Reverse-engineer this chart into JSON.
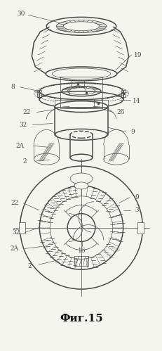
{
  "title": "Фиг.15",
  "title_fontsize": 11,
  "title_fontweight": "bold",
  "bg_color": "#f5f5f0",
  "line_color": "#4a4a4a",
  "fig_width": 2.32,
  "fig_height": 4.99,
  "dpi": 100
}
